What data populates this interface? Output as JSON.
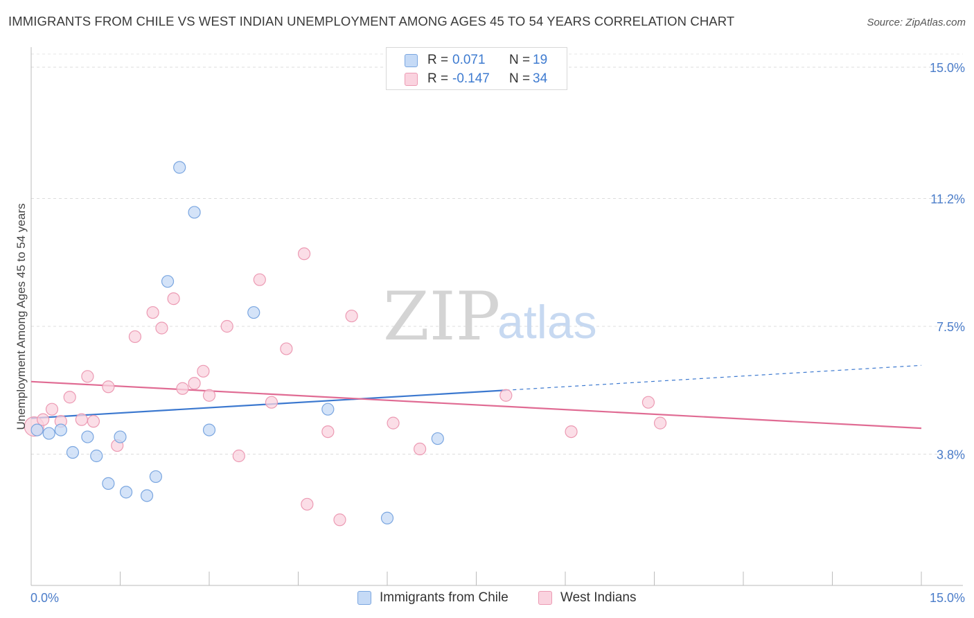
{
  "header": {
    "title": "IMMIGRANTS FROM CHILE VS WEST INDIAN UNEMPLOYMENT AMONG AGES 45 TO 54 YEARS CORRELATION CHART",
    "source": "Source: ZipAtlas.com"
  },
  "watermark": {
    "zip": "ZIP",
    "atlas": "atlas"
  },
  "legend": {
    "rows": [
      {
        "r_label": "R =",
        "r_value": "0.071",
        "n_label": "N =",
        "n_value": "19",
        "color": "#a9c8f0",
        "border": "#7aa6e0"
      },
      {
        "r_label": "R =",
        "r_value": "-0.147",
        "n_label": "N =",
        "n_value": "34",
        "color": "#f7c0d0",
        "border": "#ec9ab3"
      }
    ]
  },
  "bottom_legend": [
    {
      "label": "Immigrants from Chile",
      "color": "#c5daf6",
      "border": "#7aa6e0"
    },
    {
      "label": "West Indians",
      "color": "#fad3df",
      "border": "#ec9ab3"
    }
  ],
  "chart_data": {
    "type": "scatter",
    "title": "IMMIGRANTS FROM CHILE VS WEST INDIAN UNEMPLOYMENT AMONG AGES 45 TO 54 YEARS CORRELATION CHART",
    "xlabel": "",
    "ylabel": "Unemployment Among Ages 45 to 54 years",
    "xlim": [
      0,
      15
    ],
    "ylim": [
      0,
      15.4
    ],
    "x_tick_labels": [
      "0.0%",
      "15.0%"
    ],
    "y_ticks": [
      3.8,
      7.5,
      11.2,
      15.0
    ],
    "y_tick_labels": [
      "3.8%",
      "7.5%",
      "11.2%",
      "15.0%"
    ],
    "grid": true,
    "legend_position": "top-center",
    "series": [
      {
        "name": "Immigrants from Chile",
        "color": "#7aa6e0",
        "fill": "#c5daf6",
        "trend": {
          "x0": 0,
          "y0": 4.84,
          "x1": 8.0,
          "y1": 5.65,
          "dashed_to_x": 15.0,
          "dashed_to_y": 6.37,
          "color": "#3b78cf"
        },
        "points": [
          [
            0.1,
            4.5
          ],
          [
            0.3,
            4.4
          ],
          [
            0.5,
            4.5
          ],
          [
            0.7,
            3.85
          ],
          [
            0.95,
            4.3
          ],
          [
            1.1,
            3.75
          ],
          [
            1.3,
            2.95
          ],
          [
            1.5,
            4.3
          ],
          [
            1.6,
            2.7
          ],
          [
            1.95,
            2.6
          ],
          [
            2.1,
            3.15
          ],
          [
            2.3,
            8.8
          ],
          [
            2.5,
            12.1
          ],
          [
            2.75,
            10.8
          ],
          [
            3.0,
            4.5
          ],
          [
            3.75,
            7.9
          ],
          [
            5.0,
            5.1
          ],
          [
            6.0,
            1.95
          ],
          [
            6.85,
            4.25
          ]
        ]
      },
      {
        "name": "West Indians",
        "color": "#ec9ab3",
        "fill": "#fad3df",
        "trend": {
          "x0": 0,
          "y0": 5.9,
          "x1": 15.0,
          "y1": 4.55,
          "color": "#e06b93"
        },
        "points": [
          [
            0.05,
            4.6
          ],
          [
            0.2,
            4.8
          ],
          [
            0.35,
            5.1
          ],
          [
            0.5,
            4.75
          ],
          [
            0.65,
            5.45
          ],
          [
            0.85,
            4.8
          ],
          [
            0.95,
            6.05
          ],
          [
            1.05,
            4.75
          ],
          [
            1.3,
            5.75
          ],
          [
            1.45,
            4.05
          ],
          [
            1.75,
            7.2
          ],
          [
            2.05,
            7.9
          ],
          [
            2.2,
            7.45
          ],
          [
            2.4,
            8.3
          ],
          [
            2.55,
            5.7
          ],
          [
            2.75,
            5.85
          ],
          [
            2.9,
            6.2
          ],
          [
            3.0,
            5.5
          ],
          [
            3.3,
            7.5
          ],
          [
            3.5,
            3.75
          ],
          [
            3.85,
            8.85
          ],
          [
            4.05,
            5.3
          ],
          [
            4.3,
            6.85
          ],
          [
            4.6,
            9.6
          ],
          [
            4.65,
            2.35
          ],
          [
            5.0,
            4.45
          ],
          [
            5.2,
            1.9
          ],
          [
            5.4,
            7.8
          ],
          [
            6.1,
            4.7
          ],
          [
            6.55,
            3.95
          ],
          [
            8.0,
            5.5
          ],
          [
            9.1,
            4.45
          ],
          [
            10.4,
            5.3
          ],
          [
            10.6,
            4.7
          ]
        ]
      }
    ]
  }
}
